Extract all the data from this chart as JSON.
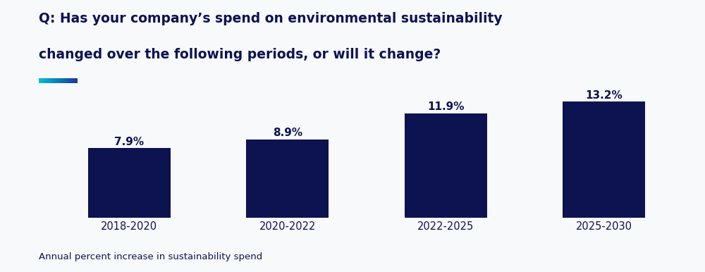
{
  "categories": [
    "2018-2020",
    "2020-2022",
    "2022-2025",
    "2025-2030"
  ],
  "values": [
    7.9,
    8.9,
    11.9,
    13.2
  ],
  "labels": [
    "7.9%",
    "8.9%",
    "11.9%",
    "13.2%"
  ],
  "bar_color": "#0d1250",
  "background_color": "#f8f9fb",
  "title_line1": "Q: Has your company’s spend on environmental sustainability",
  "title_line2": "changed over the following periods, or will it change?",
  "title_color": "#0d1250",
  "title_fontsize": 13.5,
  "footnote": "Annual percent increase in sustainability spend",
  "footnote_color": "#0d1250",
  "footnote_fontsize": 9.5,
  "label_fontsize": 11,
  "tick_fontsize": 10.5,
  "bar_width": 0.52,
  "ylim": [
    0,
    15.5
  ],
  "accent_cyan": "#00c8d4",
  "accent_blue": "#1a3fa0"
}
